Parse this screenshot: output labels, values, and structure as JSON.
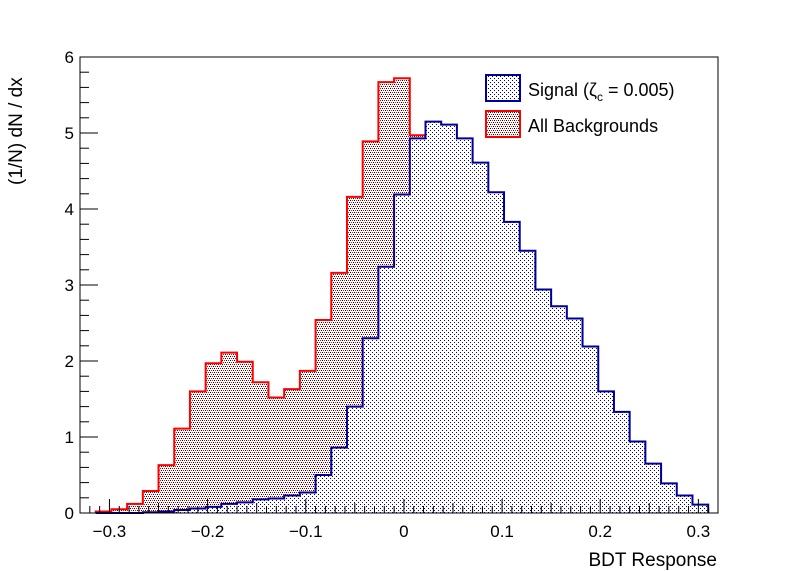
{
  "chart_data": {
    "type": "histogram",
    "xlabel": "BDT Response",
    "ylabel": "(1/N) dN / dx",
    "xlim": [
      -0.33,
      0.32
    ],
    "ylim": [
      0,
      6
    ],
    "grid": false,
    "legend_position": "top-right",
    "x_ticks": [
      "−0.3",
      "−0.2",
      "−0.1",
      "0",
      "0.1",
      "0.2",
      "0.3"
    ],
    "x_tick_values": [
      -0.3,
      -0.2,
      -0.1,
      0,
      0.1,
      0.2,
      0.3
    ],
    "y_ticks": [
      "0",
      "1",
      "2",
      "3",
      "4",
      "5",
      "6"
    ],
    "y_tick_values": [
      0,
      1,
      2,
      3,
      4,
      5,
      6
    ],
    "bin_edges": [
      -0.314,
      -0.298,
      -0.282,
      -0.266,
      -0.25,
      -0.234,
      -0.218,
      -0.202,
      -0.186,
      -0.17,
      -0.154,
      -0.138,
      -0.122,
      -0.106,
      -0.09,
      -0.074,
      -0.058,
      -0.042,
      -0.026,
      -0.01,
      0.006,
      0.022,
      0.038,
      0.054,
      0.07,
      0.086,
      0.102,
      0.118,
      0.134,
      0.15,
      0.166,
      0.182,
      0.198,
      0.214,
      0.23,
      0.246,
      0.262,
      0.278,
      0.294,
      0.31
    ],
    "series": [
      {
        "name": "All Backgrounds",
        "color": "#ff0000",
        "fill": "#bba9a9",
        "values": [
          0.02,
          0.05,
          0.12,
          0.29,
          0.63,
          1.11,
          1.6,
          1.97,
          2.11,
          1.99,
          1.72,
          1.52,
          1.63,
          1.87,
          2.54,
          3.16,
          4.16,
          4.89,
          5.67,
          5.72,
          4.97,
          3.93,
          2.77,
          1.99,
          1.42,
          1.1,
          0.89,
          0.73,
          0.53,
          0.23,
          0.13,
          0.1,
          0.1,
          0.07,
          0.03,
          0.03,
          0.03,
          0.03,
          0.06
        ]
      },
      {
        "name": "Signal (ζc = 0.005)",
        "legend_label": {
          "prefix": "Signal (ζ",
          "subscript": "c",
          "suffix": " = 0.005)"
        },
        "color": "#000099",
        "fill": "#5a5a80",
        "values": [
          0.0,
          0.0,
          0.0,
          0.01,
          0.02,
          0.04,
          0.06,
          0.08,
          0.12,
          0.14,
          0.18,
          0.19,
          0.23,
          0.27,
          0.5,
          0.86,
          1.4,
          2.3,
          3.24,
          4.19,
          4.93,
          5.15,
          5.11,
          4.93,
          4.61,
          4.22,
          3.83,
          3.45,
          2.94,
          2.72,
          2.56,
          2.19,
          1.6,
          1.33,
          0.94,
          0.65,
          0.39,
          0.23,
          0.11
        ]
      }
    ]
  }
}
